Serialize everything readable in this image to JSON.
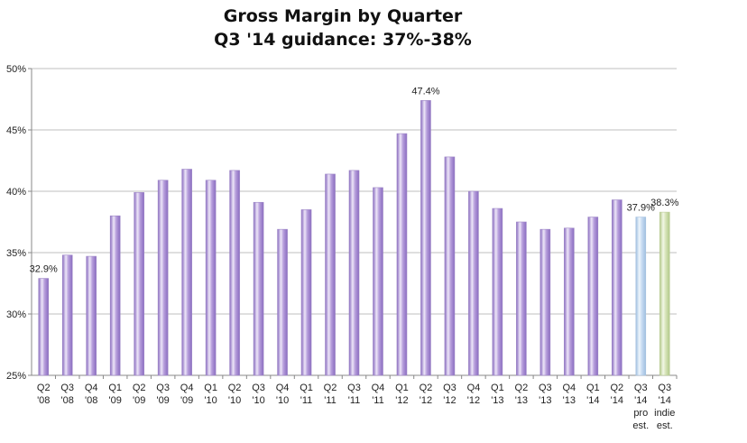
{
  "chart_data": {
    "type": "bar",
    "title": "Gross Margin by Quarter",
    "subtitle": "Q3 '14 guidance: 37%-38%",
    "xlabel": "",
    "ylabel": "",
    "ylim": [
      25,
      50
    ],
    "yticks": [
      "25%",
      "30%",
      "35%",
      "40%",
      "45%",
      "50%"
    ],
    "ytick_values": [
      25,
      30,
      35,
      40,
      45,
      50
    ],
    "grid": true,
    "legend": "none",
    "categories": [
      [
        "Q2",
        "'08"
      ],
      [
        "Q3",
        "'08"
      ],
      [
        "Q4",
        "'08"
      ],
      [
        "Q1",
        "'09"
      ],
      [
        "Q2",
        "'09"
      ],
      [
        "Q3",
        "'09"
      ],
      [
        "Q4",
        "'09"
      ],
      [
        "Q1",
        "'10"
      ],
      [
        "Q2",
        "'10"
      ],
      [
        "Q3",
        "'10"
      ],
      [
        "Q4",
        "'10"
      ],
      [
        "Q1",
        "'11"
      ],
      [
        "Q2",
        "'11"
      ],
      [
        "Q3",
        "'11"
      ],
      [
        "Q4",
        "'11"
      ],
      [
        "Q1",
        "'12"
      ],
      [
        "Q2",
        "'12"
      ],
      [
        "Q3",
        "'12"
      ],
      [
        "Q4",
        "'12"
      ],
      [
        "Q1",
        "'13"
      ],
      [
        "Q2",
        "'13"
      ],
      [
        "Q3",
        "'13"
      ],
      [
        "Q4",
        "'13"
      ],
      [
        "Q1",
        "'14"
      ],
      [
        "Q2",
        "'14"
      ],
      [
        "Q3",
        "'14",
        "pro",
        "est."
      ],
      [
        "Q3",
        "'14",
        "indie",
        "est."
      ]
    ],
    "values": [
      32.9,
      34.8,
      34.7,
      38.0,
      39.9,
      40.9,
      41.8,
      40.9,
      41.7,
      39.1,
      36.9,
      38.5,
      41.4,
      41.7,
      40.3,
      44.7,
      47.4,
      42.8,
      40.0,
      38.6,
      37.5,
      36.9,
      37.0,
      37.9,
      39.3,
      37.9,
      38.3
    ],
    "data_labels": [
      {
        "index": 0,
        "text": "32.9%"
      },
      {
        "index": 16,
        "text": "47.4%"
      },
      {
        "index": 25,
        "text": "37.9%"
      },
      {
        "index": 26,
        "text": "38.3%"
      }
    ],
    "colors": {
      "actual": "#b79fdc",
      "actual_light": "#ede6f8",
      "actual_dark": "#8a6cc0",
      "pro_estimate": "#c8dcf2",
      "pro_estimate_light": "#eef5fc",
      "indie_estimate": "#d6e4b8",
      "indie_estimate_light": "#f2f7e6",
      "grid": "#bfbfbf",
      "axis": "#888888"
    }
  }
}
